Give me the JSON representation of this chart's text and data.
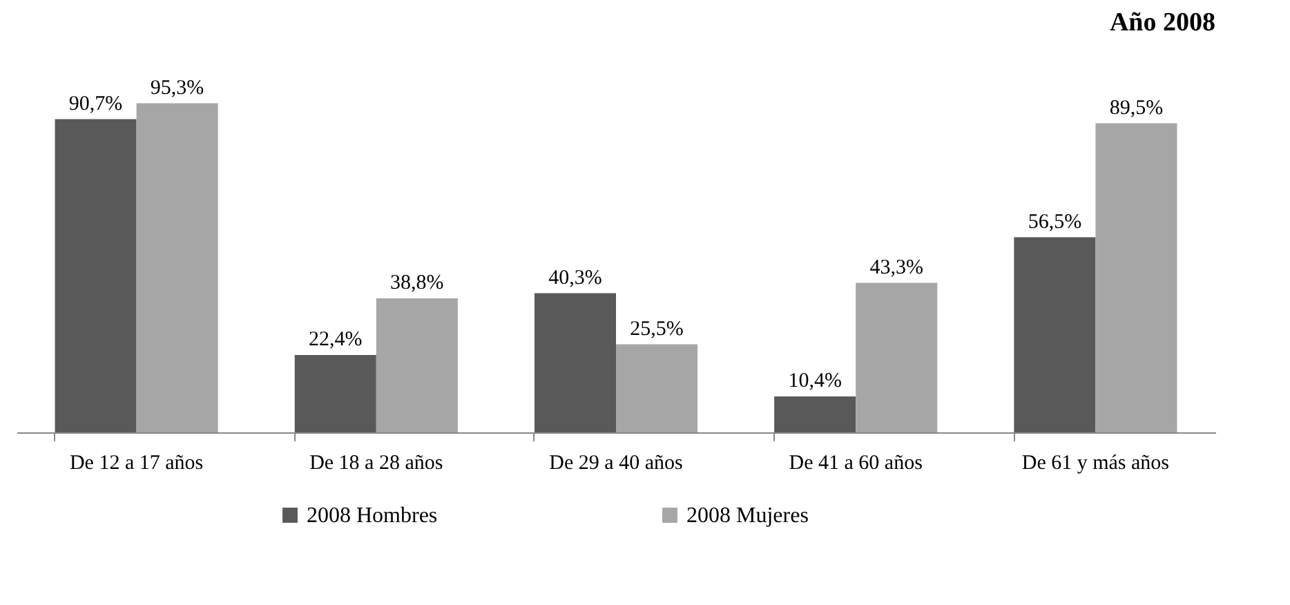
{
  "chart_data": {
    "type": "bar",
    "title": "Año 2008",
    "categories": [
      "De 12 a 17 años",
      "De 18 a 28 años",
      "De 29 a 40 años",
      "De 41 a 60 años",
      "De 61 y más años"
    ],
    "series": [
      {
        "name": "2008 Hombres",
        "color": "#595959",
        "values": [
          90.7,
          22.4,
          40.3,
          10.4,
          56.5
        ],
        "value_labels": [
          "90,7%",
          "22,4%",
          "40,3%",
          "10,4%",
          "56,5%"
        ]
      },
      {
        "name": "2008 Mujeres",
        "color": "#a6a6a6",
        "values": [
          95.3,
          38.8,
          25.5,
          43.3,
          89.5
        ],
        "value_labels": [
          "95,3%",
          "38,8%",
          "25,5%",
          "43,3%",
          "89,5%"
        ]
      }
    ],
    "legend": "bottom"
  }
}
